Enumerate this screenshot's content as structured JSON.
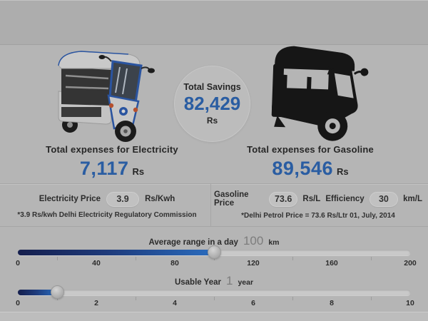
{
  "savings": {
    "label": "Total Savings",
    "value": "82,429",
    "currency": "Rs"
  },
  "electricity": {
    "expense_label": "Total expenses for Electricity",
    "expense_value": "7,117",
    "currency": "Rs",
    "price_label": "Electricity Price",
    "price_value": "3.9",
    "price_unit": "Rs/Kwh",
    "footnote": "*3.9 Rs/kwh Delhi Electricity Regulatory Commission"
  },
  "gasoline": {
    "expense_label": "Total expenses for Gasoline",
    "expense_value": "89,546",
    "currency": "Rs",
    "price_label": "Gasoline Price",
    "price_value": "73.6",
    "price_unit": "Rs/L",
    "efficiency_label": "Efficiency",
    "efficiency_value": "30",
    "efficiency_unit": "km/L",
    "footnote": "*Delhi Petrol Price = 73.6 Rs/Ltr 01, July, 2014"
  },
  "range_slider": {
    "label": "Average range in a day",
    "value": "100",
    "unit": "km",
    "min": 0,
    "max": 200,
    "percent": 50,
    "ticks": [
      "0",
      "40",
      "80",
      "120",
      "160",
      "200"
    ]
  },
  "year_slider": {
    "label": "Usable Year",
    "value": "1",
    "unit": "year",
    "min": 0,
    "max": 10,
    "percent": 10,
    "ticks": [
      "0",
      "2",
      "4",
      "6",
      "8",
      "10"
    ]
  },
  "icons": {
    "left_vehicle": "electric-rickshaw-photo",
    "right_vehicle": "gasoline-rickshaw-silhouette"
  },
  "colors": {
    "accent_blue": "#2a5da2",
    "slider_fill_start": "#151f4d",
    "slider_fill_end": "#2a6cbe",
    "background": "#b5b5b5",
    "top_band": "#adadad"
  }
}
